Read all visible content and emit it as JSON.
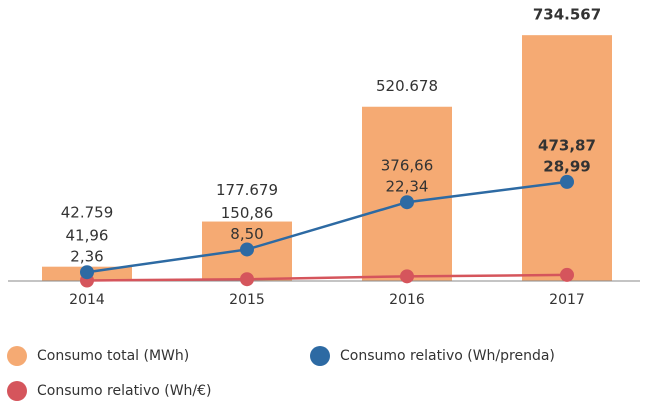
{
  "chart_data": {
    "type": "bar_line",
    "categories": [
      "2014",
      "2015",
      "2016",
      "2017"
    ],
    "ylim": [
      0,
      750000
    ],
    "y2lim": [
      0,
      1200
    ],
    "series": [
      {
        "name": "Consumo total (MWh)",
        "color": "#f5aa73",
        "type": "bar",
        "values": [
          42759,
          177679,
          520678,
          734567
        ],
        "value_labels": [
          "42.759",
          "177.679",
          "520.678",
          "734.567"
        ]
      },
      {
        "name": "Consumo relativo (Wh/prenda)",
        "color": "#2d6aa3",
        "type": "line",
        "axis": "y2",
        "values": [
          41.96,
          150.86,
          376.66,
          473.87
        ],
        "value_labels": [
          "41,96",
          "150,86",
          "376,66",
          "473,87"
        ]
      },
      {
        "name": "Consumo relativo (Wh/€)",
        "color": "#d5555c",
        "type": "line",
        "axis": "y2",
        "values": [
          2.36,
          8.5,
          22.34,
          28.99
        ],
        "value_labels": [
          "2,36",
          "8,50",
          "22,34",
          "28,99"
        ]
      }
    ]
  }
}
